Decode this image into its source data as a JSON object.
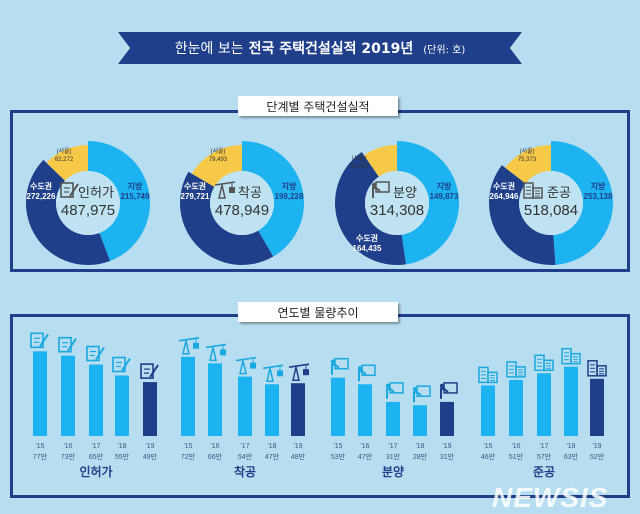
{
  "header": {
    "pre": "한눈에 보는",
    "title": "전국 주택건설실적 2019년",
    "unit": "(단위: 호)"
  },
  "section1_label": "단계별 주택건설실적",
  "section2_label": "연도별 물량추이",
  "watermark": "NEWSIS",
  "colors": {
    "regional": "#1cb3f0",
    "capital": "#1f3f8a",
    "seoul": "#f7c948",
    "bar_past": "#1cb3f0",
    "bar_current": "#1f3f8a"
  },
  "chart_data": [
    {
      "type": "pie",
      "title": "인허가",
      "icon": "document-pen-icon",
      "total": "487,975",
      "slices": [
        {
          "name": "지방",
          "value": 215749,
          "label": "215,749"
        },
        {
          "name": "수도권",
          "value": 272226,
          "label": "272,226"
        }
      ],
      "sub_slice": {
        "name": "(서울)",
        "value": 62272,
        "label": "62,272"
      }
    },
    {
      "type": "pie",
      "title": "착공",
      "icon": "crane-icon",
      "total": "478,949",
      "slices": [
        {
          "name": "지방",
          "value": 199228,
          "label": "199,228"
        },
        {
          "name": "수도권",
          "value": 279721,
          "label": "279,721"
        }
      ],
      "sub_slice": {
        "name": "(서울)",
        "value": 79493,
        "label": "79,493"
      }
    },
    {
      "type": "pie",
      "title": "분양",
      "icon": "presentation-icon",
      "total": "314,308",
      "slices": [
        {
          "name": "지방",
          "value": 149873,
          "label": "149,873"
        },
        {
          "name": "수도권",
          "value": 164435,
          "label": "164,435"
        }
      ],
      "sub_slice": {
        "name": "(서울)",
        "value": 30250,
        "label": "30,250"
      }
    },
    {
      "type": "pie",
      "title": "준공",
      "icon": "buildings-icon",
      "total": "518,084",
      "slices": [
        {
          "name": "지방",
          "value": 253138,
          "label": "253,138"
        },
        {
          "name": "수도권",
          "value": 264946,
          "label": "264,946"
        }
      ],
      "sub_slice": {
        "name": "(서울)",
        "value": 75373,
        "label": "75,373"
      }
    },
    {
      "type": "bar",
      "title": "인허가",
      "icon": "document-pen-icon",
      "categories": [
        "'15",
        "'16",
        "'17",
        "'18",
        "'19"
      ],
      "values": [
        77,
        73,
        65,
        55,
        49
      ],
      "value_labels": [
        "77만",
        "73만",
        "65만",
        "55만",
        "49만"
      ]
    },
    {
      "type": "bar",
      "title": "착공",
      "icon": "crane-icon",
      "categories": [
        "'15",
        "'16",
        "'17",
        "'18",
        "'19"
      ],
      "values": [
        72,
        66,
        54,
        47,
        48
      ],
      "value_labels": [
        "72만",
        "66만",
        "54만",
        "47만",
        "48만"
      ]
    },
    {
      "type": "bar",
      "title": "분양",
      "icon": "presentation-icon",
      "categories": [
        "'15",
        "'16",
        "'17",
        "'18",
        "'19"
      ],
      "values": [
        53,
        47,
        31,
        28,
        31
      ],
      "value_labels": [
        "53만",
        "47만",
        "31만",
        "28만",
        "31만"
      ]
    },
    {
      "type": "bar",
      "title": "준공",
      "icon": "buildings-icon",
      "categories": [
        "'15",
        "'16",
        "'17",
        "'18",
        "'19"
      ],
      "values": [
        46,
        51,
        57,
        63,
        52
      ],
      "value_labels": [
        "46만",
        "51만",
        "57만",
        "63만",
        "52만"
      ]
    }
  ]
}
